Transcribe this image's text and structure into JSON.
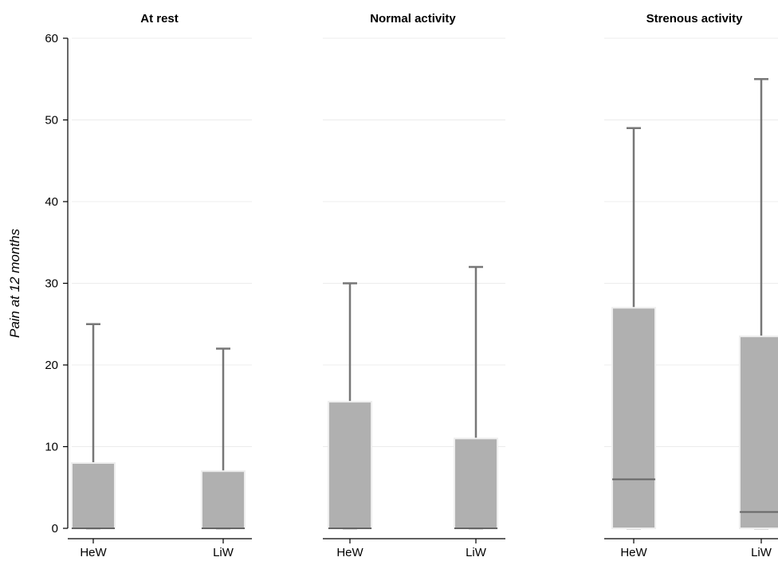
{
  "chart_data": {
    "type": "box",
    "ylabel": "Pain at 12 months",
    "ylim": [
      0,
      60
    ],
    "yticks": [
      0,
      10,
      20,
      30,
      40,
      50,
      60
    ],
    "grid": true,
    "categories": [
      "HeW",
      "LiW"
    ],
    "panels": [
      {
        "title": "At rest",
        "boxes": [
          {
            "category": "HeW",
            "min": 0,
            "q1": 0,
            "median": 0,
            "q3": 8,
            "max": 25
          },
          {
            "category": "LiW",
            "min": 0,
            "q1": 0,
            "median": 0,
            "q3": 7,
            "max": 22
          }
        ]
      },
      {
        "title": "Normal activity",
        "boxes": [
          {
            "category": "HeW",
            "min": 0,
            "q1": 0,
            "median": 0,
            "q3": 15.5,
            "max": 30
          },
          {
            "category": "LiW",
            "min": 0,
            "q1": 0,
            "median": 0,
            "q3": 11,
            "max": 32
          }
        ]
      },
      {
        "title": "Strenous activity",
        "boxes": [
          {
            "category": "HeW",
            "min": 0,
            "q1": 0,
            "median": 6,
            "q3": 27,
            "max": 49
          },
          {
            "category": "LiW",
            "min": 0,
            "q1": 0,
            "median": 2,
            "q3": 23.5,
            "max": 55
          }
        ]
      }
    ]
  }
}
